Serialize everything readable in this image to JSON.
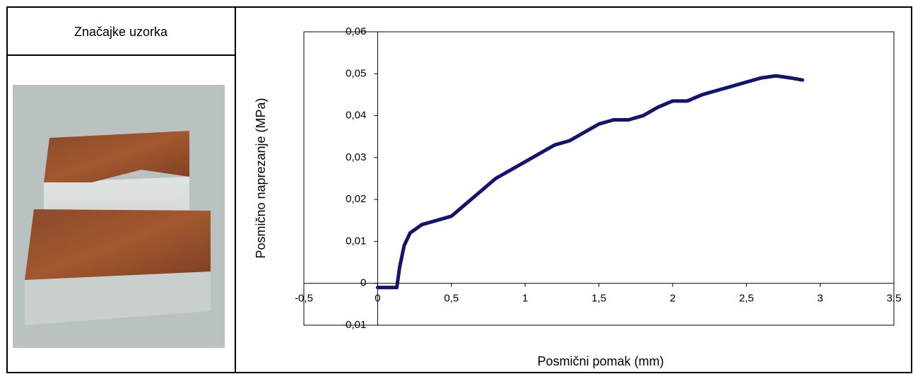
{
  "table": {
    "header": "Značajke uzorka"
  },
  "chart_data": {
    "type": "line",
    "xlabel": "Posmični pomak (mm)",
    "ylabel": "Posmično naprezanje (MPa)",
    "xlim": [
      -0.5,
      3.5
    ],
    "ylim": [
      -0.01,
      0.06
    ],
    "xticks": [
      {
        "value": -0.5,
        "label": "-0,5"
      },
      0,
      {
        "value": 0.5,
        "label": "0,5"
      },
      1,
      {
        "value": 1.5,
        "label": "1,5"
      },
      2,
      {
        "value": 2.5,
        "label": "2,5"
      },
      3,
      {
        "value": 3.5,
        "label": "3,5"
      }
    ],
    "yticks": [
      {
        "value": -0.01,
        "label": "-0,01"
      },
      0,
      {
        "value": 0.01,
        "label": "0,01"
      },
      {
        "value": 0.02,
        "label": "0,02"
      },
      {
        "value": 0.03,
        "label": "0,03"
      },
      {
        "value": 0.04,
        "label": "0,04"
      },
      {
        "value": 0.05,
        "label": "0,05"
      },
      {
        "value": 0.06,
        "label": "0,06"
      }
    ],
    "series": [
      {
        "color": "#14146e",
        "x": [
          0,
          0.13,
          0.15,
          0.18,
          0.22,
          0.3,
          0.4,
          0.5,
          0.6,
          0.7,
          0.8,
          0.9,
          1.0,
          1.1,
          1.2,
          1.3,
          1.4,
          1.5,
          1.6,
          1.7,
          1.8,
          1.9,
          2.0,
          2.1,
          2.2,
          2.3,
          2.4,
          2.5,
          2.6,
          2.7,
          2.8,
          2.88
        ],
        "values": [
          -0.001,
          -0.001,
          0.004,
          0.009,
          0.012,
          0.014,
          0.015,
          0.016,
          0.019,
          0.022,
          0.025,
          0.027,
          0.029,
          0.031,
          0.033,
          0.034,
          0.036,
          0.038,
          0.039,
          0.039,
          0.04,
          0.042,
          0.0435,
          0.0435,
          0.045,
          0.046,
          0.047,
          0.048,
          0.049,
          0.0495,
          0.049,
          0.0485
        ]
      }
    ]
  }
}
